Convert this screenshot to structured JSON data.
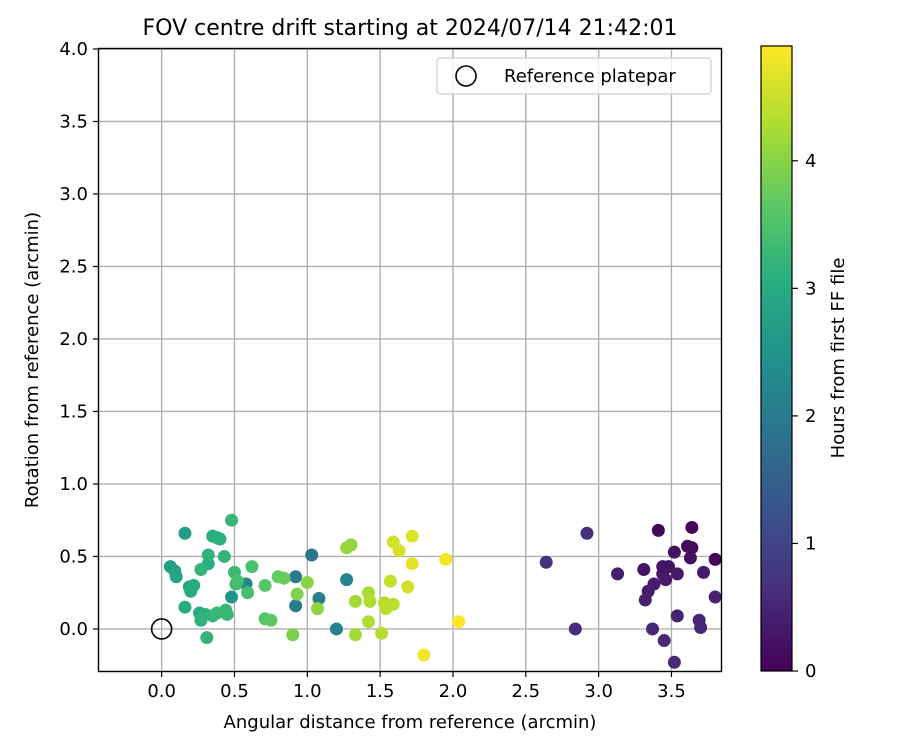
{
  "chart_data": {
    "type": "scatter",
    "title": "FOV centre drift starting at 2024/07/14 21:42:01",
    "xlabel": "Angular distance from reference (arcmin)",
    "ylabel": "Rotation from reference (arcmin)",
    "xlim": [
      -0.43,
      3.84
    ],
    "ylim": [
      -0.29,
      4.0
    ],
    "xticks": [
      "0.0",
      "0.5",
      "1.0",
      "1.5",
      "2.0",
      "2.5",
      "3.0",
      "3.5"
    ],
    "xtick_values": [
      0.0,
      0.5,
      1.0,
      1.5,
      2.0,
      2.5,
      3.0,
      3.5
    ],
    "yticks": [
      "0.0",
      "0.5",
      "1.0",
      "1.5",
      "2.0",
      "2.5",
      "3.0",
      "3.5",
      "4.0"
    ],
    "ytick_values": [
      0.0,
      0.5,
      1.0,
      1.5,
      2.0,
      2.5,
      3.0,
      3.5,
      4.0
    ],
    "grid": true,
    "legend": {
      "placement": "top-right",
      "entries": [
        {
          "label": "Reference platepar",
          "marker": "open-circle"
        }
      ]
    },
    "reference_point": {
      "x": 0.0,
      "y": 0.0
    },
    "colorbar": {
      "label": "Hours from first FF file",
      "colormap": "viridis",
      "range": [
        0,
        4.9
      ],
      "ticks": [
        "0",
        "1",
        "2",
        "3",
        "4"
      ],
      "tick_values": [
        0,
        1,
        2,
        3,
        4
      ]
    },
    "points": [
      {
        "x": 3.64,
        "y": 0.7,
        "c": 0.05
      },
      {
        "x": 3.41,
        "y": 0.68,
        "c": 0.1
      },
      {
        "x": 3.8,
        "y": 0.48,
        "c": 0.08
      },
      {
        "x": 3.64,
        "y": 0.56,
        "c": 0.12
      },
      {
        "x": 3.61,
        "y": 0.57,
        "c": 0.15
      },
      {
        "x": 3.63,
        "y": 0.49,
        "c": 0.18
      },
      {
        "x": 3.52,
        "y": 0.53,
        "c": 0.2
      },
      {
        "x": 3.44,
        "y": 0.43,
        "c": 0.22
      },
      {
        "x": 3.48,
        "y": 0.43,
        "c": 0.25
      },
      {
        "x": 3.31,
        "y": 0.41,
        "c": 0.28
      },
      {
        "x": 3.44,
        "y": 0.38,
        "c": 0.3
      },
      {
        "x": 3.54,
        "y": 0.38,
        "c": 0.32
      },
      {
        "x": 3.46,
        "y": 0.34,
        "c": 0.34
      },
      {
        "x": 3.72,
        "y": 0.39,
        "c": 0.36
      },
      {
        "x": 3.38,
        "y": 0.31,
        "c": 0.38
      },
      {
        "x": 3.34,
        "y": 0.26,
        "c": 0.4
      },
      {
        "x": 3.32,
        "y": 0.2,
        "c": 0.42
      },
      {
        "x": 3.13,
        "y": 0.38,
        "c": 0.44
      },
      {
        "x": 3.8,
        "y": 0.22,
        "c": 0.46
      },
      {
        "x": 3.54,
        "y": 0.09,
        "c": 0.48
      },
      {
        "x": 3.69,
        "y": 0.06,
        "c": 0.5
      },
      {
        "x": 3.7,
        "y": 0.01,
        "c": 0.52
      },
      {
        "x": 3.37,
        "y": 0.0,
        "c": 0.54
      },
      {
        "x": 3.45,
        "y": -0.08,
        "c": 0.56
      },
      {
        "x": 3.52,
        "y": -0.23,
        "c": 0.58
      },
      {
        "x": 2.84,
        "y": 0.0,
        "c": 0.62
      },
      {
        "x": 2.92,
        "y": 0.66,
        "c": 0.65
      },
      {
        "x": 2.64,
        "y": 0.46,
        "c": 0.7
      },
      {
        "x": 1.03,
        "y": 0.51,
        "c": 1.9
      },
      {
        "x": 0.92,
        "y": 0.36,
        "c": 2.0
      },
      {
        "x": 1.08,
        "y": 0.21,
        "c": 2.05
      },
      {
        "x": 0.92,
        "y": 0.16,
        "c": 2.1
      },
      {
        "x": 1.2,
        "y": 0.0,
        "c": 2.15
      },
      {
        "x": 1.27,
        "y": 0.34,
        "c": 2.2
      },
      {
        "x": 0.58,
        "y": 0.31,
        "c": 2.3
      },
      {
        "x": 0.48,
        "y": 0.22,
        "c": 2.5
      },
      {
        "x": 0.16,
        "y": 0.66,
        "c": 2.7
      },
      {
        "x": 0.06,
        "y": 0.43,
        "c": 2.75
      },
      {
        "x": 0.09,
        "y": 0.4,
        "c": 2.8
      },
      {
        "x": 0.1,
        "y": 0.36,
        "c": 2.85
      },
      {
        "x": 0.19,
        "y": 0.29,
        "c": 2.9
      },
      {
        "x": 0.2,
        "y": 0.26,
        "c": 2.95
      },
      {
        "x": 0.22,
        "y": 0.3,
        "c": 3.0
      },
      {
        "x": 0.32,
        "y": 0.45,
        "c": 3.0
      },
      {
        "x": 0.35,
        "y": 0.64,
        "c": 3.05
      },
      {
        "x": 0.38,
        "y": 0.63,
        "c": 3.1
      },
      {
        "x": 0.4,
        "y": 0.62,
        "c": 3.1
      },
      {
        "x": 0.32,
        "y": 0.51,
        "c": 3.15
      },
      {
        "x": 0.43,
        "y": 0.5,
        "c": 3.2
      },
      {
        "x": 0.48,
        "y": 0.75,
        "c": 3.25
      },
      {
        "x": 0.27,
        "y": 0.41,
        "c": 3.2
      },
      {
        "x": 0.16,
        "y": 0.15,
        "c": 3.0
      },
      {
        "x": 0.26,
        "y": 0.11,
        "c": 3.05
      },
      {
        "x": 0.3,
        "y": 0.1,
        "c": 3.1
      },
      {
        "x": 0.27,
        "y": 0.06,
        "c": 3.15
      },
      {
        "x": 0.31,
        "y": -0.06,
        "c": 3.2
      },
      {
        "x": 0.35,
        "y": 0.09,
        "c": 3.2
      },
      {
        "x": 0.38,
        "y": 0.11,
        "c": 3.25
      },
      {
        "x": 0.44,
        "y": 0.13,
        "c": 3.25
      },
      {
        "x": 0.45,
        "y": 0.1,
        "c": 3.3
      },
      {
        "x": 0.5,
        "y": 0.39,
        "c": 3.3
      },
      {
        "x": 0.51,
        "y": 0.31,
        "c": 3.35
      },
      {
        "x": 0.52,
        "y": 0.33,
        "c": 3.4
      },
      {
        "x": 0.59,
        "y": 0.25,
        "c": 3.4
      },
      {
        "x": 0.62,
        "y": 0.43,
        "c": 3.45
      },
      {
        "x": 0.71,
        "y": 0.07,
        "c": 3.55
      },
      {
        "x": 0.71,
        "y": 0.3,
        "c": 3.6
      },
      {
        "x": 0.75,
        "y": 0.06,
        "c": 3.65
      },
      {
        "x": 0.8,
        "y": 0.36,
        "c": 3.7
      },
      {
        "x": 0.84,
        "y": 0.35,
        "c": 3.75
      },
      {
        "x": 0.9,
        "y": -0.04,
        "c": 3.9
      },
      {
        "x": 0.93,
        "y": 0.24,
        "c": 3.95
      },
      {
        "x": 1.0,
        "y": 0.32,
        "c": 4.0
      },
      {
        "x": 1.07,
        "y": 0.14,
        "c": 4.05
      },
      {
        "x": 1.27,
        "y": 0.56,
        "c": 4.1
      },
      {
        "x": 1.3,
        "y": 0.58,
        "c": 4.1
      },
      {
        "x": 1.33,
        "y": 0.19,
        "c": 4.2
      },
      {
        "x": 1.33,
        "y": -0.04,
        "c": 4.2
      },
      {
        "x": 1.42,
        "y": 0.25,
        "c": 4.25
      },
      {
        "x": 1.43,
        "y": 0.19,
        "c": 4.3
      },
      {
        "x": 1.42,
        "y": 0.05,
        "c": 4.3
      },
      {
        "x": 1.51,
        "y": -0.03,
        "c": 4.35
      },
      {
        "x": 1.53,
        "y": 0.18,
        "c": 4.35
      },
      {
        "x": 1.54,
        "y": 0.14,
        "c": 4.4
      },
      {
        "x": 1.57,
        "y": 0.33,
        "c": 4.45
      },
      {
        "x": 1.59,
        "y": 0.17,
        "c": 4.4
      },
      {
        "x": 1.59,
        "y": 0.6,
        "c": 4.55
      },
      {
        "x": 1.63,
        "y": 0.54,
        "c": 4.6
      },
      {
        "x": 1.69,
        "y": 0.29,
        "c": 4.55
      },
      {
        "x": 1.72,
        "y": 0.64,
        "c": 4.65
      },
      {
        "x": 1.72,
        "y": 0.45,
        "c": 4.7
      },
      {
        "x": 1.8,
        "y": -0.18,
        "c": 4.8
      },
      {
        "x": 1.95,
        "y": 0.48,
        "c": 4.8
      },
      {
        "x": 2.04,
        "y": 0.05,
        "c": 4.9
      }
    ]
  }
}
